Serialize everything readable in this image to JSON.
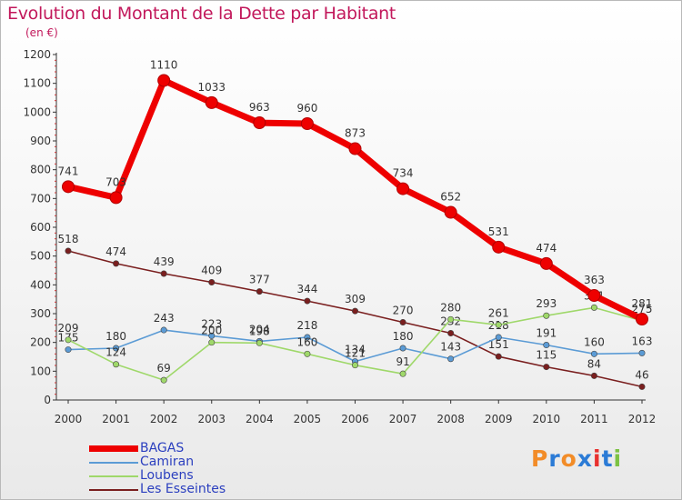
{
  "chart_data": {
    "type": "line",
    "title": "Evolution du Montant de la Dette par Habitant",
    "subtitle": "(en €)",
    "xlabel": "",
    "ylabel": "",
    "x": [
      "2000",
      "2001",
      "2002",
      "2003",
      "2004",
      "2005",
      "2006",
      "2007",
      "2008",
      "2009",
      "2010",
      "2011",
      "2012"
    ],
    "ylim": [
      0,
      1200
    ],
    "yticks": [
      "0",
      "100",
      "200",
      "300",
      "400",
      "500",
      "600",
      "700",
      "800",
      "900",
      "1000",
      "1100",
      "1200"
    ],
    "grid": false,
    "legend_position": "bottom-left",
    "series": [
      {
        "name": "Les Esseintes",
        "color": "#7a1f1f",
        "values": [
          518,
          474,
          439,
          409,
          377,
          344,
          309,
          270,
          232,
          151,
          115,
          84,
          46
        ]
      },
      {
        "name": "Camiran",
        "color": "#5b9bd5",
        "values": [
          175,
          180,
          243,
          223,
          204,
          218,
          134,
          180,
          143,
          218,
          191,
          160,
          163
        ]
      },
      {
        "name": "Loubens",
        "color": "#9fd86a",
        "values": [
          209,
          124,
          69,
          200,
          198,
          160,
          121,
          91,
          280,
          261,
          293,
          321,
          275
        ]
      },
      {
        "name": "BAGAS",
        "color": "#ee0000",
        "values": [
          741,
          703,
          1110,
          1033,
          963,
          960,
          873,
          734,
          652,
          531,
          474,
          363,
          281
        ]
      }
    ]
  },
  "legend": {
    "items": [
      {
        "label": "BAGAS",
        "color": "#ee0000"
      },
      {
        "label": "Camiran",
        "color": "#5b9bd5"
      },
      {
        "label": "Loubens",
        "color": "#9fd86a"
      },
      {
        "label": "Les Esseintes",
        "color": "#7a1f1f"
      }
    ]
  },
  "logo": {
    "letters": [
      "P",
      "r",
      "o",
      "x",
      "i",
      "t",
      "i"
    ],
    "colors": [
      "#f28c28",
      "#2b7bd6",
      "#f28c28",
      "#2b7bd6",
      "#e8312f",
      "#2b7bd6",
      "#7cc243"
    ]
  }
}
